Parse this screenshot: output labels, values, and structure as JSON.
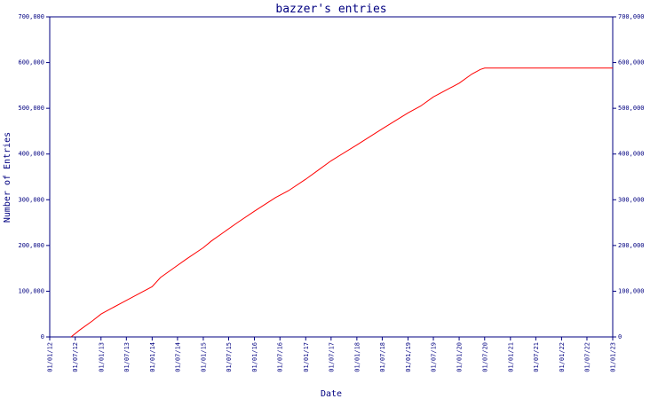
{
  "chart_data": {
    "type": "line",
    "title": "bazzer's entries",
    "xlabel": "Date",
    "ylabel": "Number of Entries",
    "ylim": [
      0,
      700000
    ],
    "y_ticks": [
      0,
      100000,
      200000,
      300000,
      400000,
      500000,
      600000,
      700000
    ],
    "y_tick_labels": [
      "0",
      "100,000",
      "200,000",
      "300,000",
      "400,000",
      "500,000",
      "600,000",
      "700,000"
    ],
    "xlim": [
      "2012-01-01",
      "2023-01-01"
    ],
    "x_tick_labels": [
      "01/01/12",
      "01/07/12",
      "01/01/13",
      "01/07/13",
      "01/01/14",
      "01/07/14",
      "01/01/15",
      "01/07/15",
      "01/01/16",
      "01/07/16",
      "01/01/17",
      "01/07/17",
      "01/01/18",
      "01/07/18",
      "01/01/19",
      "01/07/19",
      "01/01/20",
      "01/07/20",
      "01/01/21",
      "01/07/21",
      "01/01/22",
      "01/07/22",
      "01/01/23"
    ],
    "grid": false,
    "legend": "none",
    "line_color": "#ff0000",
    "axis_color": "#000080",
    "series": [
      {
        "x": [
          "2012-06-01",
          "2012-08-01",
          "2012-11-01",
          "2013-01-01",
          "2013-03-01",
          "2013-06-01",
          "2013-09-01",
          "2014-01-01",
          "2014-03-01",
          "2014-06-01",
          "2014-09-01",
          "2015-01-01",
          "2015-03-01",
          "2015-06-01",
          "2015-09-01",
          "2016-01-01",
          "2016-06-01",
          "2016-09-01",
          "2017-01-01",
          "2017-04-01",
          "2017-07-01",
          "2018-01-01",
          "2018-07-01",
          "2019-01-01",
          "2019-04-01",
          "2019-07-01",
          "2020-01-01",
          "2020-04-01",
          "2020-06-01",
          "2020-07-01",
          "2023-01-01"
        ],
        "y": [
          0,
          15000,
          35000,
          50000,
          60000,
          75000,
          90000,
          110000,
          130000,
          150000,
          170000,
          195000,
          210000,
          230000,
          250000,
          275000,
          305000,
          320000,
          345000,
          365000,
          385000,
          420000,
          455000,
          490000,
          505000,
          525000,
          555000,
          575000,
          585000,
          588000,
          588000
        ]
      }
    ]
  }
}
